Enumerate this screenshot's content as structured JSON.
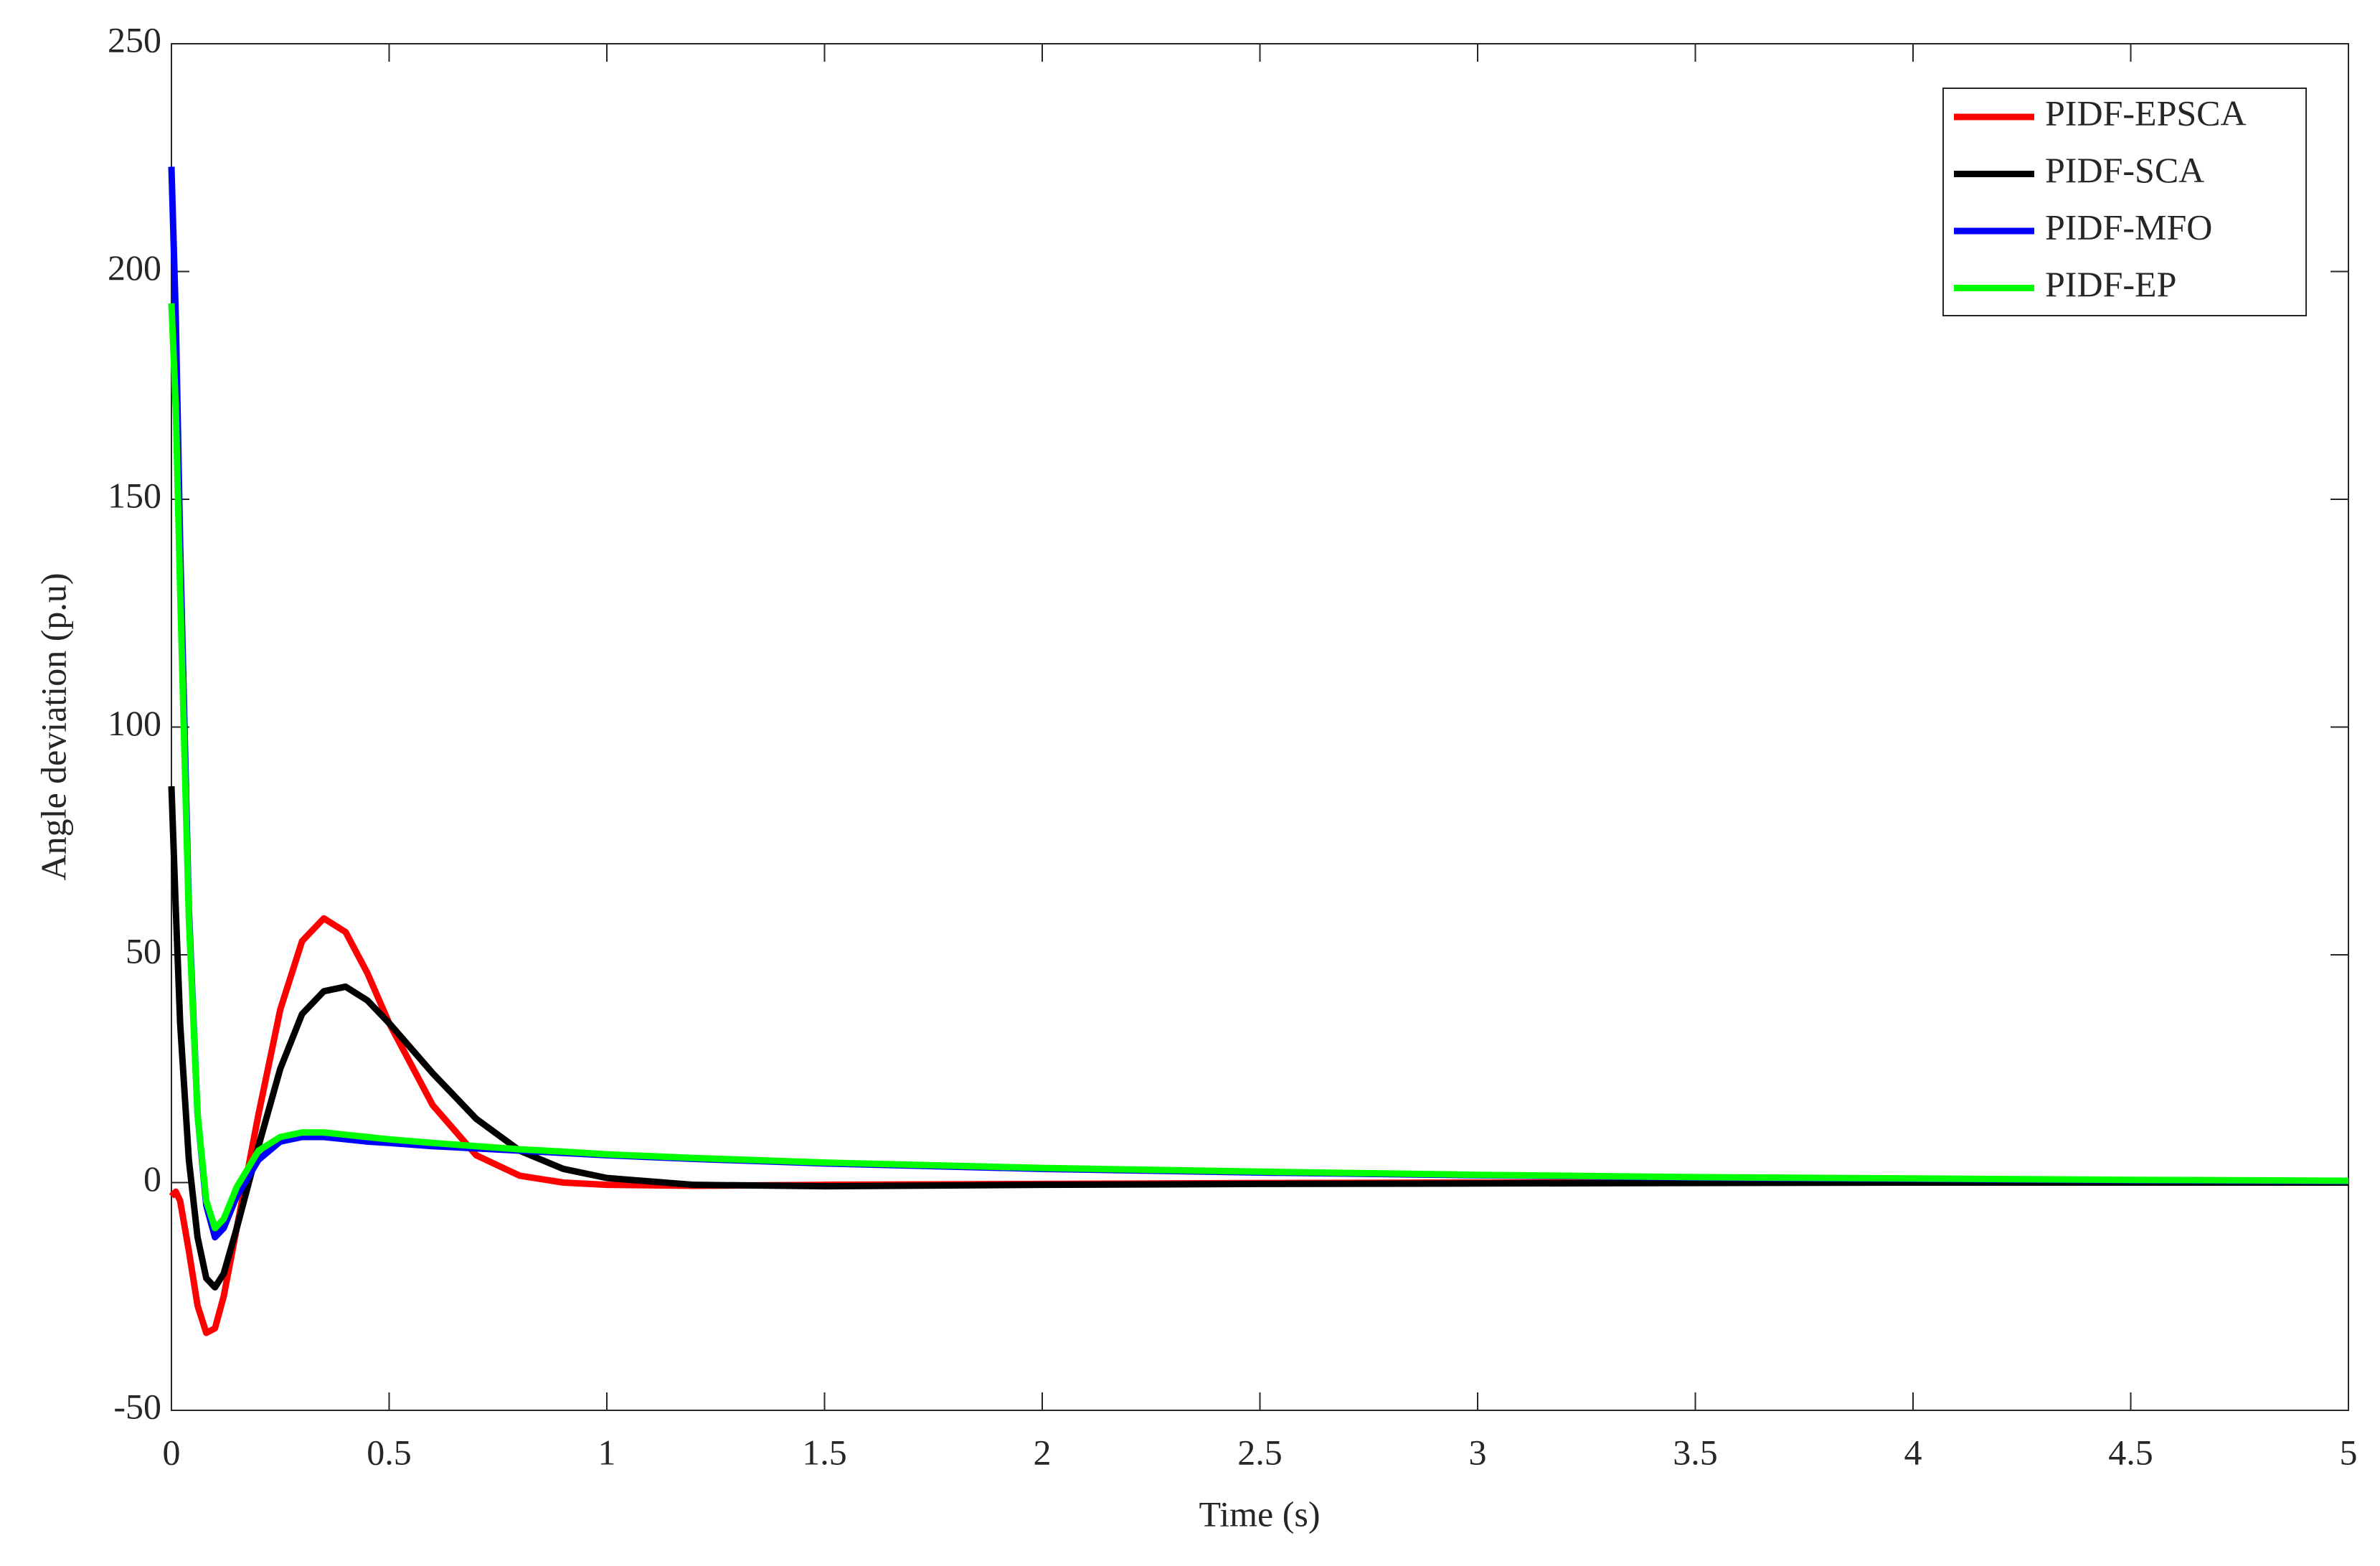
{
  "chart_data": {
    "type": "line",
    "xlabel": "Time (s)",
    "ylabel": "Angle deviation (p.u)",
    "x": [
      0,
      0.01,
      0.02,
      0.04,
      0.06,
      0.08,
      0.1,
      0.12,
      0.15,
      0.2,
      0.25,
      0.3,
      0.35,
      0.4,
      0.45,
      0.5,
      0.6,
      0.7,
      0.8,
      0.9,
      1,
      1.2,
      1.5,
      2,
      2.5,
      3,
      3.5,
      4,
      4.5,
      5
    ],
    "series": [
      {
        "name": "PIDF-EPSCA",
        "color": "#ff0000",
        "values": [
          -3,
          -2,
          -4,
          -15,
          -27,
          -33,
          -32,
          -25,
          -10,
          15,
          38,
          53,
          58,
          55,
          46,
          35,
          17,
          6,
          1.5,
          0,
          -0.5,
          -0.7,
          -0.5,
          -0.3,
          -0.1,
          0,
          0,
          0,
          0,
          0
        ]
      },
      {
        "name": "PIDF-SCA",
        "color": "#000000",
        "values": [
          87,
          60,
          35,
          5,
          -12,
          -21,
          -23,
          -20,
          -10,
          8,
          25,
          37,
          42,
          43,
          40,
          35,
          24,
          14,
          7,
          3,
          1,
          -0.5,
          -0.8,
          -0.5,
          -0.3,
          -0.2,
          -0.1,
          0,
          0,
          0
        ]
      },
      {
        "name": "PIDF-MFO",
        "color": "#0000ff",
        "values": [
          223,
          190,
          140,
          60,
          15,
          -5,
          -12,
          -10,
          -3,
          5,
          9,
          10,
          10,
          9.5,
          9,
          8.7,
          8,
          7.5,
          7,
          6.5,
          6,
          5.2,
          4.2,
          3,
          2.2,
          1.6,
          1.1,
          0.8,
          0.5,
          0.3
        ]
      },
      {
        "name": "PIDF-EP",
        "color": "#00ff00",
        "values": [
          193,
          170,
          130,
          58,
          15,
          -4,
          -10,
          -8,
          -1,
          7,
          10,
          11,
          11,
          10.5,
          10,
          9.5,
          8.7,
          8,
          7.3,
          6.8,
          6.2,
          5.4,
          4.4,
          3.2,
          2.4,
          1.7,
          1.2,
          0.9,
          0.6,
          0.4
        ]
      }
    ],
    "xlim": [
      0,
      5
    ],
    "xticks": [
      0,
      0.5,
      1,
      1.5,
      2,
      2.5,
      3,
      3.5,
      4,
      4.5,
      5
    ],
    "ylim": [
      -50,
      250
    ],
    "yticks": [
      -50,
      0,
      50,
      100,
      150,
      200,
      250
    ],
    "grid": false,
    "legend": "upper right"
  }
}
